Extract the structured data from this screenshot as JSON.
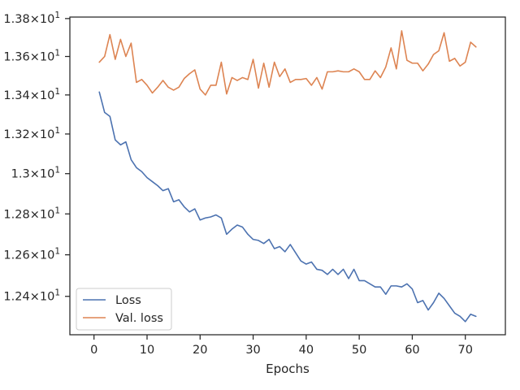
{
  "chart_data": {
    "type": "line",
    "xlabel": "Epochs",
    "ylabel": "",
    "xlim": [
      -4.55,
      77.55
    ],
    "ylim": [
      12.218,
      13.808
    ],
    "yscale": "log",
    "x_ticks": [
      0,
      10,
      20,
      30,
      40,
      50,
      60,
      70
    ],
    "x_tick_labels": [
      "0",
      "10",
      "20",
      "30",
      "40",
      "50",
      "60",
      "70"
    ],
    "y_ticks": [
      12.4,
      12.6,
      12.8,
      13.0,
      13.2,
      13.4,
      13.6,
      13.8
    ],
    "y_tick_labels": [
      {
        "base": "1.24",
        "times": "×",
        "exp_base": "10",
        "exp": "1"
      },
      {
        "base": "1.26",
        "times": "×",
        "exp_base": "10",
        "exp": "1"
      },
      {
        "base": "1.28",
        "times": "×",
        "exp_base": "10",
        "exp": "1"
      },
      {
        "base": "1.3",
        "times": "×",
        "exp_base": "10",
        "exp": "1"
      },
      {
        "base": "1.32",
        "times": "×",
        "exp_base": "10",
        "exp": "1"
      },
      {
        "base": "1.34",
        "times": "×",
        "exp_base": "10",
        "exp": "1"
      },
      {
        "base": "1.36",
        "times": "×",
        "exp_base": "10",
        "exp": "1"
      },
      {
        "base": "1.38",
        "times": "×",
        "exp_base": "10",
        "exp": "1"
      }
    ],
    "grid": false,
    "legend_position": "lower-left",
    "x": [
      1,
      2,
      3,
      4,
      5,
      6,
      7,
      8,
      9,
      10,
      11,
      12,
      13,
      14,
      15,
      16,
      17,
      18,
      19,
      20,
      21,
      22,
      23,
      24,
      25,
      26,
      27,
      28,
      29,
      30,
      31,
      32,
      33,
      34,
      35,
      36,
      37,
      38,
      39,
      40,
      41,
      42,
      43,
      44,
      45,
      46,
      47,
      48,
      49,
      50,
      51,
      52,
      53,
      54,
      55,
      56,
      57,
      58,
      59,
      60,
      61,
      62,
      63,
      64,
      65,
      66,
      67,
      68,
      69,
      70,
      71,
      72
    ],
    "series": [
      {
        "name": "Loss",
        "color": "#4c72b0",
        "values": [
          13.415,
          13.31,
          13.29,
          13.17,
          13.145,
          13.16,
          13.07,
          13.03,
          13.01,
          12.98,
          12.96,
          12.94,
          12.915,
          12.925,
          12.86,
          12.87,
          12.835,
          12.81,
          12.825,
          12.77,
          12.78,
          12.785,
          12.795,
          12.78,
          12.7,
          12.725,
          12.745,
          12.735,
          12.7,
          12.675,
          12.67,
          12.655,
          12.675,
          12.63,
          12.64,
          12.615,
          12.65,
          12.61,
          12.57,
          12.555,
          12.565,
          12.53,
          12.525,
          12.505,
          12.53,
          12.505,
          12.53,
          12.485,
          12.53,
          12.475,
          12.475,
          12.46,
          12.445,
          12.445,
          12.41,
          12.45,
          12.45,
          12.445,
          12.46,
          12.435,
          12.37,
          12.38,
          12.335,
          12.37,
          12.415,
          12.39,
          12.355,
          12.32,
          12.305,
          12.28,
          12.315,
          12.305
        ]
      },
      {
        "name": "Val. loss",
        "color": "#dd8452",
        "values": [
          13.57,
          13.6,
          13.715,
          13.585,
          13.69,
          13.6,
          13.67,
          13.465,
          13.48,
          13.45,
          13.41,
          13.44,
          13.475,
          13.44,
          13.425,
          13.44,
          13.485,
          13.51,
          13.53,
          13.43,
          13.4,
          13.45,
          13.45,
          13.57,
          13.405,
          13.49,
          13.475,
          13.49,
          13.48,
          13.585,
          13.435,
          13.565,
          13.44,
          13.57,
          13.495,
          13.535,
          13.465,
          13.48,
          13.48,
          13.485,
          13.45,
          13.49,
          13.43,
          13.52,
          13.52,
          13.525,
          13.52,
          13.52,
          13.535,
          13.52,
          13.48,
          13.48,
          13.525,
          13.49,
          13.545,
          13.645,
          13.535,
          13.735,
          13.58,
          13.565,
          13.565,
          13.525,
          13.56,
          13.61,
          13.63,
          13.725,
          13.575,
          13.59,
          13.55,
          13.57,
          13.675,
          13.65
        ]
      }
    ]
  }
}
